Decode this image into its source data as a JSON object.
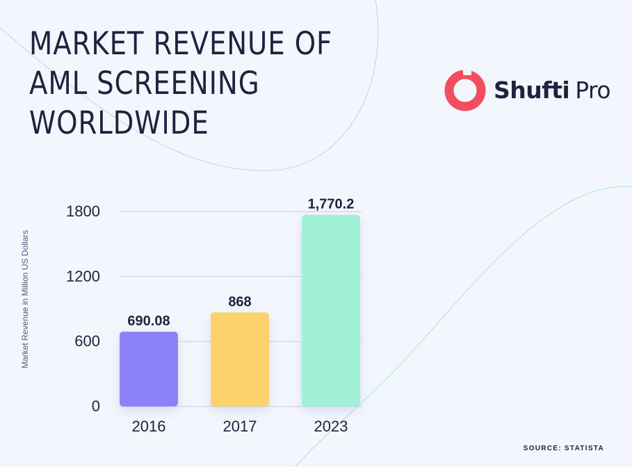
{
  "title_lines": [
    "MARKET REVENUE OF",
    "AML SCREENING",
    "WORLDWIDE"
  ],
  "logo": {
    "name_bold": "Shufti",
    "name_light": "Pro"
  },
  "source": "SOURCE: STATISTA",
  "colors": {
    "background": "#f4f6fd",
    "text": "#23213f",
    "grid": "#c9d3f2",
    "logo_accent": "#f24e5d"
  },
  "chart_data": {
    "type": "bar",
    "categories": [
      "2016",
      "2017",
      "2023"
    ],
    "values": [
      690.08,
      868,
      1770.2
    ],
    "value_labels": [
      "690.08",
      "868",
      "1,770.2"
    ],
    "bar_colors": [
      "#8c80f8",
      "#fbd36b",
      "#a0f1d8"
    ],
    "ylabel": "Market Revenue in Million US Dollars",
    "ylim": [
      0,
      1800
    ],
    "yticks": [
      "0",
      "600",
      "1200",
      "1800"
    ],
    "grid": true
  }
}
